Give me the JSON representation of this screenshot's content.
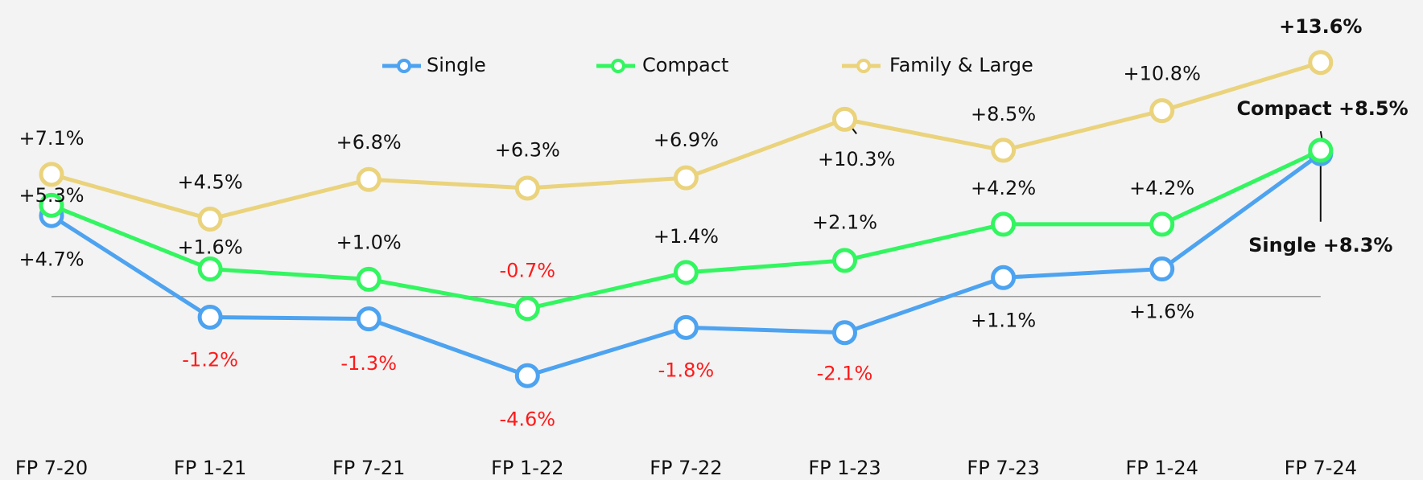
{
  "chart_data": {
    "type": "line",
    "categories": [
      "FP 7-20",
      "FP 1-21",
      "FP 7-21",
      "FP 1-22",
      "FP 7-22",
      "FP 1-23",
      "FP 7-23",
      "FP 1-24",
      "FP 7-24"
    ],
    "series": [
      {
        "name": "Single",
        "color": "#4da3f0",
        "values": [
          4.7,
          -1.2,
          -1.3,
          -4.6,
          -1.8,
          -2.1,
          1.1,
          1.6,
          8.3
        ],
        "value_labels": [
          "+4.7%",
          "-1.2%",
          "-1.3%",
          "-4.6%",
          "-1.8%",
          "-2.1%",
          "+1.1%",
          "+1.6%",
          "Single +8.3%"
        ]
      },
      {
        "name": "Compact",
        "color": "#33f560",
        "values": [
          5.3,
          1.6,
          1.0,
          -0.7,
          1.4,
          2.1,
          4.2,
          4.2,
          8.5
        ],
        "value_labels": [
          "+5.3%",
          "+1.6%",
          "+1.0%",
          "-0.7%",
          "+1.4%",
          "+2.1%",
          "+4.2%",
          "+4.2%",
          "Compact +8.5%"
        ]
      },
      {
        "name": "Family & Large",
        "color": "#ead37c",
        "values": [
          7.1,
          4.5,
          6.8,
          6.3,
          6.9,
          10.3,
          8.5,
          10.8,
          13.6
        ],
        "value_labels": [
          "+7.1%",
          "+4.5%",
          "+6.8%",
          "+6.3%",
          "+6.9%",
          "+10.3%",
          "+8.5%",
          "+10.8%",
          "+13.6%"
        ]
      }
    ],
    "ylim": [
      -8,
      17
    ],
    "legend": "top"
  }
}
